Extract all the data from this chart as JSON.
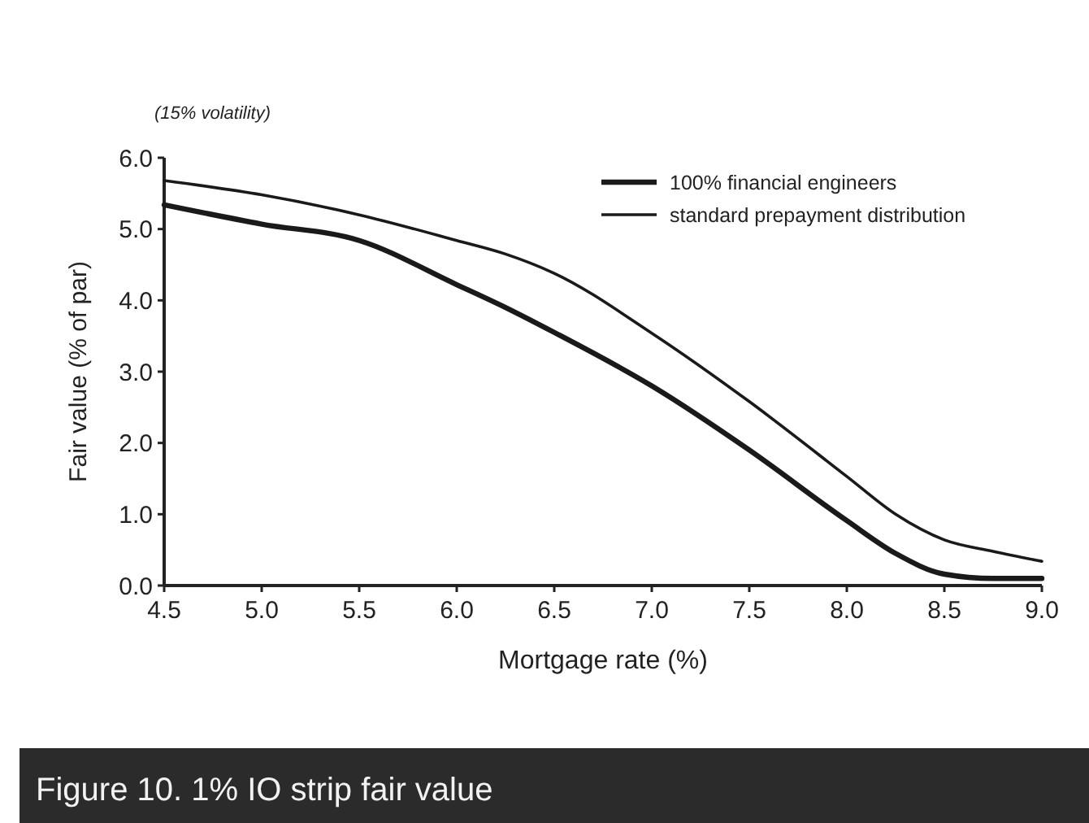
{
  "chart_data": {
    "type": "line",
    "title": "Figure 10. 1% IO strip fair value",
    "subtitle": "(15% volatility)",
    "xlabel": "Mortgage rate (%)",
    "ylabel": "Fair value (% of par)",
    "x": [
      4.5,
      5.0,
      5.5,
      6.0,
      6.25,
      6.5,
      7.0,
      7.5,
      8.0,
      8.25,
      8.5,
      8.75,
      9.0
    ],
    "series": [
      {
        "name": "100% financial engineers",
        "color": "#1a1a1a",
        "values": [
          5.34,
          5.07,
          4.84,
          4.22,
          3.9,
          3.55,
          2.8,
          1.9,
          0.91,
          0.45,
          0.16,
          0.1,
          0.1
        ]
      },
      {
        "name": "standard prepayment distribution",
        "color": "#1a1a1a",
        "values": [
          5.68,
          5.48,
          5.2,
          4.84,
          4.65,
          4.38,
          3.54,
          2.58,
          1.53,
          1.0,
          0.64,
          0.48,
          0.34
        ]
      }
    ],
    "xlim": [
      4.5,
      9.0
    ],
    "xticks": [
      {
        "value": 4.5,
        "label": "4.5"
      },
      {
        "value": 5.0,
        "label": "5.0"
      },
      {
        "value": 5.5,
        "label": "5.5"
      },
      {
        "value": 6.0,
        "label": "6.0"
      },
      {
        "value": 6.5,
        "label": "6.5"
      },
      {
        "value": 7.0,
        "label": "7.0"
      },
      {
        "value": 7.5,
        "label": "7.5"
      },
      {
        "value": 8.0,
        "label": "8.0"
      },
      {
        "value": 8.5,
        "label": "8.5"
      },
      {
        "value": 9.0,
        "label": "9.0"
      }
    ],
    "ylim": [
      0,
      6.0
    ],
    "yticks": [
      {
        "value": 0,
        "label": "0.0"
      },
      {
        "value": 1,
        "label": "1.0"
      },
      {
        "value": 2,
        "label": "2.0"
      },
      {
        "value": 3,
        "label": "3.0"
      },
      {
        "value": 4,
        "label": "4.0"
      },
      {
        "value": 5,
        "label": "5.0"
      },
      {
        "value": 6,
        "label": "6.0"
      }
    ],
    "grid": false,
    "legend": "top right",
    "marker": "none",
    "line_style": "solid"
  }
}
